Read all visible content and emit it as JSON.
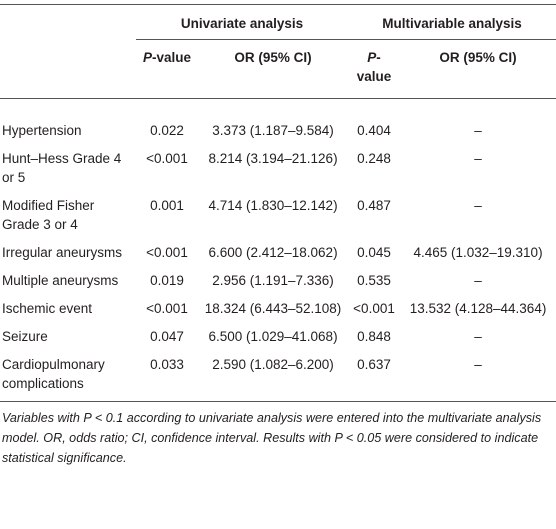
{
  "table": {
    "groups": [
      "Univariate analysis",
      "Multivariable analysis"
    ],
    "subheaders": [
      {
        "italic": "P",
        "text": "-value"
      },
      "OR (95% CI)",
      {
        "italic": "P",
        "text": "-value"
      },
      "OR (95% CI)"
    ],
    "rows": [
      [
        "Hypertension",
        "0.022",
        "3.373 (1.187–9.584)",
        "0.404",
        "–"
      ],
      [
        "Hunt–Hess Grade 4 or 5",
        "<0.001",
        "8.214 (3.194–21.126)",
        "0.248",
        "–"
      ],
      [
        "Modified Fisher Grade 3 or 4",
        "0.001",
        "4.714 (1.830–12.142)",
        "0.487",
        "–"
      ],
      [
        "Irregular aneurysms",
        "<0.001",
        "6.600 (2.412–18.062)",
        "0.045",
        "4.465 (1.032–19.310)"
      ],
      [
        "Multiple aneurysms",
        "0.019",
        "2.956 (1.191–7.336)",
        "0.535",
        "–"
      ],
      [
        "Ischemic event",
        "<0.001",
        "18.324 (6.443–52.108)",
        "<0.001",
        "13.532 (4.128–44.364)"
      ],
      [
        "Seizure",
        "0.047",
        "6.500 (1.029–41.068)",
        "0.848",
        "–"
      ],
      [
        "Cardiopulmonary complications",
        "0.033",
        "2.590 (1.082–6.200)",
        "0.637",
        "–"
      ]
    ],
    "footnote": "Variables with P < 0.1 according to univariate analysis were entered into the multivariate analysis model. OR, odds ratio; CI, confidence interval. Results with P < 0.05 were considered to indicate statistical significance."
  }
}
